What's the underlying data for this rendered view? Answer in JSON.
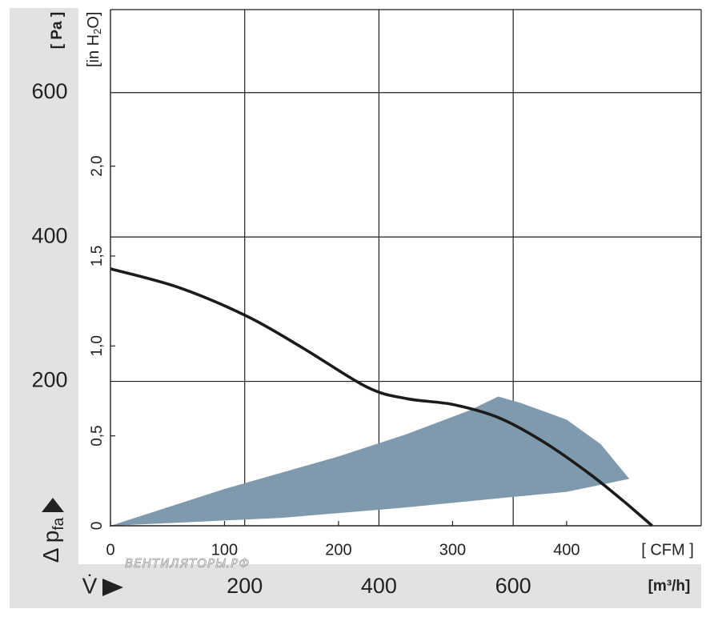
{
  "chart_data": {
    "type": "area",
    "xlabel": "V̇",
    "ylabel": "Δ p",
    "ylabel_subscript": "fa",
    "primary_x": {
      "unit_label": "[m³/h]",
      "ticks": [
        "200",
        "400",
        "600"
      ],
      "tick_values": [
        200,
        400,
        600
      ]
    },
    "secondary_x": {
      "unit_label": "[ CFM ]",
      "ticks": [
        "0",
        "100",
        "200",
        "300",
        "400"
      ],
      "tick_values": [
        0,
        100,
        200,
        300,
        400
      ],
      "range": [
        0,
        518
      ]
    },
    "primary_y": {
      "unit_label": "[ Pa ]",
      "ticks": [
        "200",
        "400",
        "600"
      ],
      "tick_values": [
        200,
        400,
        600
      ],
      "range": [
        0,
        715
      ]
    },
    "secondary_y": {
      "unit_label_text": "[in H",
      "unit_label_sub": "2",
      "unit_label_end": "O]",
      "ticks": [
        "0",
        "0,5",
        "1,0",
        "1,5",
        "2,0"
      ],
      "tick_values": [
        0,
        0.5,
        1.0,
        1.5,
        2.0
      ]
    },
    "grid": true,
    "series": [
      {
        "type": "line",
        "x_unit": "CFM",
        "y_unit": "Pa",
        "points": [
          [
            0,
            356
          ],
          [
            60,
            330
          ],
          [
            120,
            290
          ],
          [
            170,
            245
          ],
          [
            225,
            192
          ],
          [
            260,
            176
          ],
          [
            300,
            168
          ],
          [
            340,
            150
          ],
          [
            380,
            116
          ],
          [
            420,
            72
          ],
          [
            450,
            34
          ],
          [
            475,
            0
          ]
        ]
      },
      {
        "type": "area",
        "x_unit": "CFM",
        "y_unit": "Pa",
        "upper": [
          [
            0,
            0
          ],
          [
            100,
            51
          ],
          [
            200,
            96
          ],
          [
            260,
            127
          ],
          [
            315,
            160
          ],
          [
            340,
            179
          ],
          [
            360,
            170
          ],
          [
            400,
            147
          ],
          [
            430,
            113
          ],
          [
            455,
            65
          ]
        ],
        "lower": [
          [
            455,
            65
          ],
          [
            400,
            47
          ],
          [
            340,
            38
          ],
          [
            250,
            24
          ],
          [
            150,
            11
          ],
          [
            0,
            0
          ]
        ]
      }
    ],
    "colors": {
      "curve": "#1b1b1b",
      "band": "#7f99ad",
      "axis_band": "#e2e2e2",
      "grid": "#1e1e1e"
    }
  },
  "watermark": "ВЕНТИЛЯТОРЫ.РФ"
}
